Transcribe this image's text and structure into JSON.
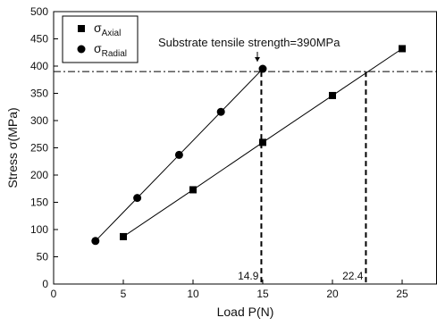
{
  "chart_data": {
    "type": "scatter",
    "xlabel": "Load P(N)",
    "ylabel": "Stress σ(MPa)",
    "xlim": [
      0,
      27.5
    ],
    "ylim": [
      0,
      500
    ],
    "xticks": [
      0,
      5,
      10,
      15,
      20,
      25
    ],
    "yticks": [
      0,
      50,
      100,
      150,
      200,
      250,
      300,
      350,
      400,
      450,
      500
    ],
    "grid": false,
    "legend_position": "top-left",
    "series": [
      {
        "name": "σ",
        "subscript": "Axial",
        "marker": "square",
        "color": "#000000",
        "x": [
          5,
          10,
          15,
          20,
          25
        ],
        "y": [
          87,
          173,
          260,
          346,
          432
        ]
      },
      {
        "name": "σ",
        "subscript": "Radial",
        "marker": "circle",
        "color": "#000000",
        "x": [
          3,
          6,
          9,
          12,
          15
        ],
        "y": [
          79,
          158,
          237,
          316,
          395
        ]
      }
    ],
    "reference_line": {
      "y": 390,
      "style": "dash-dot"
    },
    "annotations": {
      "strength_text": "Substrate tensile strength=390MPa",
      "point_to": [
        15,
        395
      ],
      "crossings": [
        {
          "x": 14.9,
          "label": "14.9"
        },
        {
          "x": 22.4,
          "label": "22.4"
        }
      ]
    }
  }
}
